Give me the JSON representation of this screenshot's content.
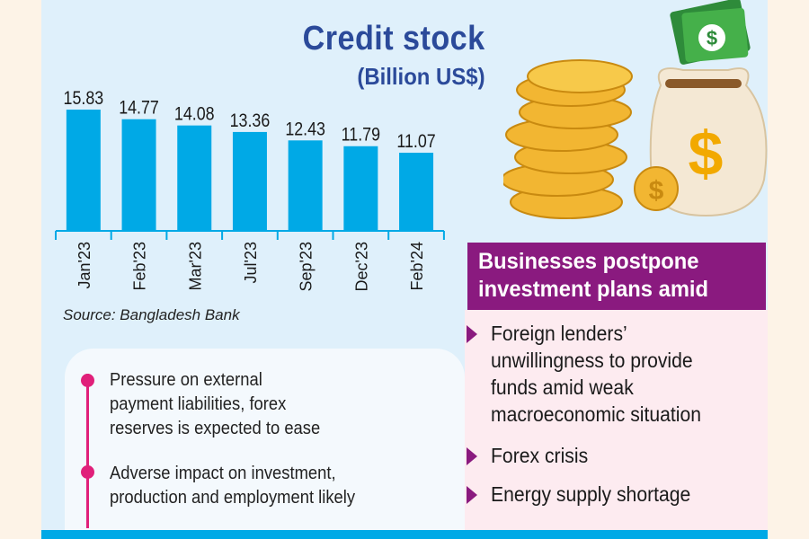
{
  "chart_data": {
    "type": "bar",
    "title": "Credit stock",
    "subtitle": "(Billion US$)",
    "categories": [
      "Jan'23",
      "Feb'23",
      "Mar'23",
      "Jul'23",
      "Sep'23",
      "Dec'23",
      "Feb'24"
    ],
    "values": [
      15.83,
      14.77,
      14.08,
      13.36,
      12.43,
      11.79,
      11.07
    ],
    "labels": [
      "15.83",
      "14.77",
      "14.08",
      "13.36",
      "12.43",
      "11.79",
      "11.07"
    ],
    "xlabel": "",
    "ylabel": "",
    "ylim": [
      2.44,
      18
    ],
    "grid": false,
    "color": "#00a9e6",
    "source": "Source: Bangladesh Bank"
  },
  "notes": [
    {
      "lines": [
        "Pressure on external",
        "payment liabilities, forex",
        "reserves is expected to ease"
      ]
    },
    {
      "lines": [
        "Adverse impact on investment,",
        "production and employment likely"
      ]
    }
  ],
  "right": {
    "header": [
      "Businesses postpone",
      "investment plans amid"
    ],
    "items": [
      {
        "lines": [
          "Foreign lenders’",
          "unwillingness to provide",
          "funds amid weak",
          "macroeconomic situation"
        ]
      },
      {
        "lines": [
          "Forex crisis"
        ]
      },
      {
        "lines": [
          "Energy supply shortage"
        ]
      }
    ]
  },
  "colors": {
    "accent": "#00a9e6",
    "title": "#2b4a9a",
    "header": "#8a1a7f",
    "bullet": "#e0207a"
  }
}
